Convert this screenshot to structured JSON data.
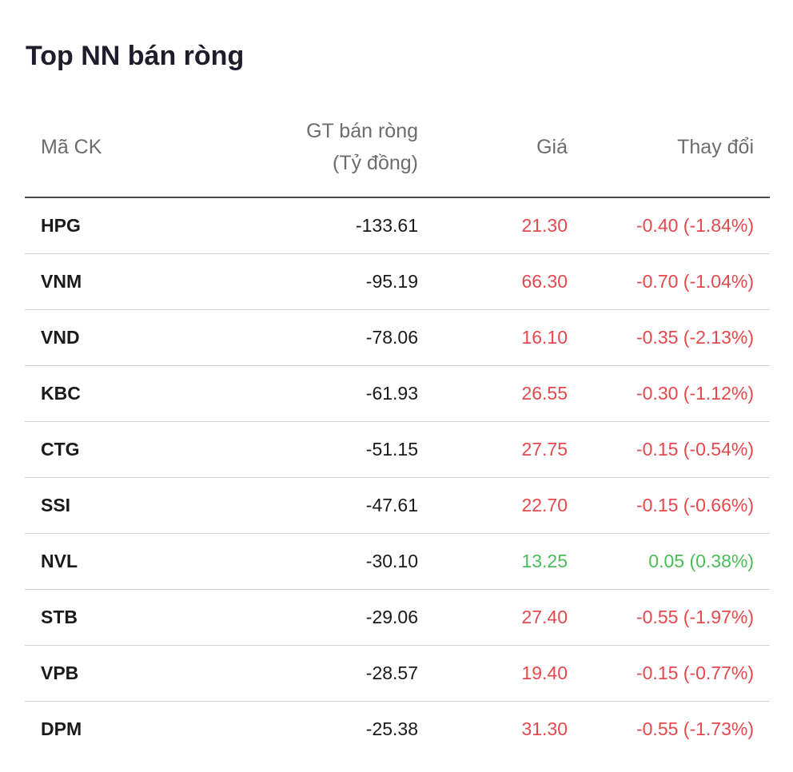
{
  "title": "Top NN bán ròng",
  "columns": {
    "code": "Mã CK",
    "value_line1": "GT bán ròng",
    "value_line2": "(Tỷ đồng)",
    "price": "Giá",
    "change": "Thay đổi"
  },
  "colors": {
    "down": "#e5484d",
    "up": "#4cbb5a"
  },
  "rows": [
    {
      "code": "HPG",
      "value": "-133.61",
      "price": "21.30",
      "change": "-0.40 (-1.84%)",
      "trend": "down"
    },
    {
      "code": "VNM",
      "value": "-95.19",
      "price": "66.30",
      "change": "-0.70 (-1.04%)",
      "trend": "down"
    },
    {
      "code": "VND",
      "value": "-78.06",
      "price": "16.10",
      "change": "-0.35 (-2.13%)",
      "trend": "down"
    },
    {
      "code": "KBC",
      "value": "-61.93",
      "price": "26.55",
      "change": "-0.30 (-1.12%)",
      "trend": "down"
    },
    {
      "code": "CTG",
      "value": "-51.15",
      "price": "27.75",
      "change": "-0.15 (-0.54%)",
      "trend": "down"
    },
    {
      "code": "SSI",
      "value": "-47.61",
      "price": "22.70",
      "change": "-0.15 (-0.66%)",
      "trend": "down"
    },
    {
      "code": "NVL",
      "value": "-30.10",
      "price": "13.25",
      "change": "0.05 (0.38%)",
      "trend": "up"
    },
    {
      "code": "STB",
      "value": "-29.06",
      "price": "27.40",
      "change": "-0.55 (-1.97%)",
      "trend": "down"
    },
    {
      "code": "VPB",
      "value": "-28.57",
      "price": "19.40",
      "change": "-0.15 (-0.77%)",
      "trend": "down"
    },
    {
      "code": "DPM",
      "value": "-25.38",
      "price": "31.30",
      "change": "-0.55 (-1.73%)",
      "trend": "down"
    }
  ]
}
